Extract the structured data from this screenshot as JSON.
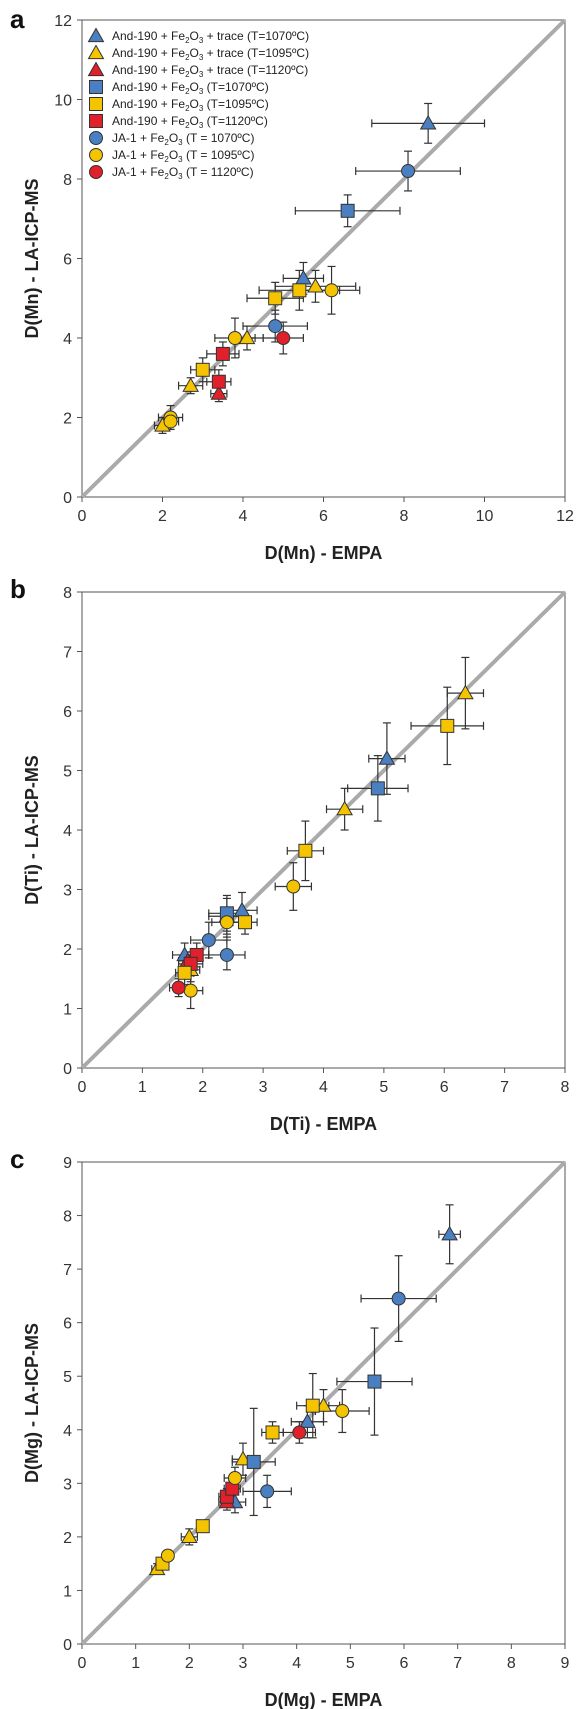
{
  "colors": {
    "blue": "#4a7fc1",
    "yellow": "#f5c400",
    "red": "#e0202a",
    "diagonal": "#aaaaaa",
    "marker_edge": "#333333"
  },
  "chart_data": [
    {
      "type": "scatter",
      "panel_letter": "a",
      "xlabel": "D(Mn) - EMPA",
      "ylabel": "D(Mn) - LA-ICP-MS",
      "xlim": [
        0,
        12
      ],
      "ylim": [
        0,
        12
      ],
      "xticks": [
        "0",
        "2",
        "4",
        "6",
        "8",
        "10",
        "12"
      ],
      "yticks": [
        "0",
        "2",
        "4",
        "6",
        "8",
        "10",
        "12"
      ],
      "reference_line": "1:1",
      "grid": false,
      "legend_position": "top-left",
      "legend": [
        {
          "label_pre": "And-190 + Fe",
          "sub": "2",
          "mid": "O",
          "sub2": "3",
          "label_post": " + trace (T=1070ºC)",
          "marker": "triangle",
          "color": "blue"
        },
        {
          "label_pre": "And-190 + Fe",
          "sub": "2",
          "mid": "O",
          "sub2": "3",
          "label_post": " + trace (T=1095ºC)",
          "marker": "triangle",
          "color": "yellow"
        },
        {
          "label_pre": "And-190 + Fe",
          "sub": "2",
          "mid": "O",
          "sub2": "3",
          "label_post": " + trace (T=1120ºC)",
          "marker": "triangle",
          "color": "red"
        },
        {
          "label_pre": "And-190 + Fe",
          "sub": "2",
          "mid": "O",
          "sub2": "3",
          "label_post": " (T=1070ºC)",
          "marker": "square",
          "color": "blue"
        },
        {
          "label_pre": "And-190 + Fe",
          "sub": "2",
          "mid": "O",
          "sub2": "3",
          "label_post": " (T=1095ºC)",
          "marker": "square",
          "color": "yellow"
        },
        {
          "label_pre": "And-190 + Fe",
          "sub": "2",
          "mid": "O",
          "sub2": "3",
          "label_post": " (T=1120ºC)",
          "marker": "square",
          "color": "red"
        },
        {
          "label_pre": "JA-1 + Fe",
          "sub": "2",
          "mid": "O",
          "sub2": "3",
          "label_post": " (T = 1070ºC)",
          "marker": "circle",
          "color": "blue"
        },
        {
          "label_pre": "JA-1 + Fe",
          "sub": "2",
          "mid": "O",
          "sub2": "3",
          "label_post": " (T = 1095ºC)",
          "marker": "circle",
          "color": "yellow"
        },
        {
          "label_pre": "JA-1 + Fe",
          "sub": "2",
          "mid": "O",
          "sub2": "3",
          "label_post": " (T = 1120ºC)",
          "marker": "circle",
          "color": "red"
        }
      ],
      "points": [
        {
          "m": "triangle",
          "c": "blue",
          "x": 8.6,
          "y": 9.4,
          "xe": 1.4,
          "ye": 0.5
        },
        {
          "m": "triangle",
          "c": "blue",
          "x": 5.5,
          "y": 5.5,
          "xe": 0.5,
          "ye": 0.4
        },
        {
          "m": "triangle",
          "c": "yellow",
          "x": 5.8,
          "y": 5.3,
          "xe": 1.0,
          "ye": 0.4
        },
        {
          "m": "triangle",
          "c": "yellow",
          "x": 4.1,
          "y": 4.0,
          "xe": 0.4,
          "ye": 0.3
        },
        {
          "m": "triangle",
          "c": "yellow",
          "x": 2.7,
          "y": 2.8,
          "xe": 0.3,
          "ye": 0.2
        },
        {
          "m": "triangle",
          "c": "yellow",
          "x": 2.0,
          "y": 1.8,
          "xe": 0.2,
          "ye": 0.2
        },
        {
          "m": "triangle",
          "c": "red",
          "x": 3.4,
          "y": 2.6,
          "xe": 0.2,
          "ye": 0.2
        },
        {
          "m": "square",
          "c": "blue",
          "x": 6.6,
          "y": 7.2,
          "xe": 1.3,
          "ye": 0.4
        },
        {
          "m": "square",
          "c": "yellow",
          "x": 4.8,
          "y": 5.0,
          "xe": 0.7,
          "ye": 0.4
        },
        {
          "m": "square",
          "c": "yellow",
          "x": 5.4,
          "y": 5.2,
          "xe": 1.0,
          "ye": 0.5
        },
        {
          "m": "square",
          "c": "yellow",
          "x": 3.0,
          "y": 3.2,
          "xe": 0.3,
          "ye": 0.3
        },
        {
          "m": "square",
          "c": "red",
          "x": 3.5,
          "y": 3.6,
          "xe": 0.4,
          "ye": 0.3
        },
        {
          "m": "square",
          "c": "red",
          "x": 3.4,
          "y": 2.9,
          "xe": 0.3,
          "ye": 0.3
        },
        {
          "m": "circle",
          "c": "blue",
          "x": 8.1,
          "y": 8.2,
          "xe": 1.3,
          "ye": 0.5
        },
        {
          "m": "circle",
          "c": "blue",
          "x": 4.8,
          "y": 4.3,
          "xe": 0.8,
          "ye": 0.4
        },
        {
          "m": "circle",
          "c": "yellow",
          "x": 6.2,
          "y": 5.2,
          "xe": 0.7,
          "ye": 0.6
        },
        {
          "m": "circle",
          "c": "yellow",
          "x": 3.8,
          "y": 4.0,
          "xe": 0.5,
          "ye": 0.5
        },
        {
          "m": "circle",
          "c": "yellow",
          "x": 2.2,
          "y": 2.0,
          "xe": 0.3,
          "ye": 0.3
        },
        {
          "m": "circle",
          "c": "yellow",
          "x": 2.2,
          "y": 1.9,
          "xe": 0.2,
          "ye": 0.2
        },
        {
          "m": "circle",
          "c": "red",
          "x": 5.0,
          "y": 4.0,
          "xe": 0.5,
          "ye": 0.4
        }
      ]
    },
    {
      "type": "scatter",
      "panel_letter": "b",
      "xlabel": "D(Ti) - EMPA",
      "ylabel": "D(Ti) - LA-ICP-MS",
      "xlim": [
        0,
        8
      ],
      "ylim": [
        0,
        8
      ],
      "xticks": [
        "0",
        "1",
        "2",
        "3",
        "4",
        "5",
        "6",
        "7",
        "8"
      ],
      "yticks": [
        "0",
        "1",
        "2",
        "3",
        "4",
        "5",
        "6",
        "7",
        "8"
      ],
      "reference_line": "1:1",
      "grid": false,
      "points": [
        {
          "m": "triangle",
          "c": "yellow",
          "x": 6.35,
          "y": 6.3,
          "xe": 0.3,
          "ye": 0.6
        },
        {
          "m": "triangle",
          "c": "blue",
          "x": 5.05,
          "y": 5.2,
          "xe": 0.3,
          "ye": 0.6
        },
        {
          "m": "triangle",
          "c": "yellow",
          "x": 4.35,
          "y": 4.35,
          "xe": 0.3,
          "ye": 0.35
        },
        {
          "m": "triangle",
          "c": "blue",
          "x": 2.65,
          "y": 2.65,
          "xe": 0.25,
          "ye": 0.3
        },
        {
          "m": "triangle",
          "c": "yellow",
          "x": 2.4,
          "y": 2.55,
          "xe": 0.3,
          "ye": 0.3
        },
        {
          "m": "triangle",
          "c": "blue",
          "x": 1.7,
          "y": 1.9,
          "xe": 0.2,
          "ye": 0.2
        },
        {
          "m": "triangle",
          "c": "yellow",
          "x": 1.8,
          "y": 1.65,
          "xe": 0.15,
          "ye": 0.2
        },
        {
          "m": "triangle",
          "c": "red",
          "x": 1.75,
          "y": 1.8,
          "xe": 0.15,
          "ye": 0.15
        },
        {
          "m": "square",
          "c": "yellow",
          "x": 6.05,
          "y": 5.75,
          "xe": 0.6,
          "ye": 0.65
        },
        {
          "m": "square",
          "c": "blue",
          "x": 4.9,
          "y": 4.7,
          "xe": 0.5,
          "ye": 0.55
        },
        {
          "m": "square",
          "c": "yellow",
          "x": 3.7,
          "y": 3.65,
          "xe": 0.3,
          "ye": 0.5
        },
        {
          "m": "square",
          "c": "blue",
          "x": 2.4,
          "y": 2.6,
          "xe": 0.3,
          "ye": 0.3
        },
        {
          "m": "square",
          "c": "yellow",
          "x": 2.7,
          "y": 2.45,
          "xe": 0.2,
          "ye": 0.2
        },
        {
          "m": "square",
          "c": "red",
          "x": 1.9,
          "y": 1.9,
          "xe": 0.2,
          "ye": 0.2
        },
        {
          "m": "square",
          "c": "red",
          "x": 1.8,
          "y": 1.75,
          "xe": 0.2,
          "ye": 0.2
        },
        {
          "m": "square",
          "c": "yellow",
          "x": 1.7,
          "y": 1.6,
          "xe": 0.15,
          "ye": 0.2
        },
        {
          "m": "circle",
          "c": "blue",
          "x": 2.1,
          "y": 2.15,
          "xe": 0.3,
          "ye": 0.3
        },
        {
          "m": "circle",
          "c": "blue",
          "x": 2.4,
          "y": 1.9,
          "xe": 0.3,
          "ye": 0.25
        },
        {
          "m": "circle",
          "c": "yellow",
          "x": 3.5,
          "y": 3.05,
          "xe": 0.3,
          "ye": 0.4
        },
        {
          "m": "circle",
          "c": "yellow",
          "x": 2.4,
          "y": 2.45,
          "xe": 0.25,
          "ye": 0.25
        },
        {
          "m": "circle",
          "c": "yellow",
          "x": 1.8,
          "y": 1.3,
          "xe": 0.2,
          "ye": 0.3
        },
        {
          "m": "circle",
          "c": "red",
          "x": 1.6,
          "y": 1.35,
          "xe": 0.15,
          "ye": 0.15
        }
      ]
    },
    {
      "type": "scatter",
      "panel_letter": "c",
      "xlabel": "D(Mg) - EMPA",
      "ylabel": "D(Mg) - LA-ICP-MS",
      "xlim": [
        0,
        9
      ],
      "ylim": [
        0,
        9
      ],
      "xticks": [
        "0",
        "1",
        "2",
        "3",
        "4",
        "5",
        "6",
        "7",
        "8",
        "9"
      ],
      "yticks": [
        "0",
        "1",
        "2",
        "3",
        "4",
        "5",
        "6",
        "7",
        "8",
        "9"
      ],
      "reference_line": "1:1",
      "grid": false,
      "points": [
        {
          "m": "triangle",
          "c": "blue",
          "x": 6.85,
          "y": 7.65,
          "xe": 0.2,
          "ye": 0.55
        },
        {
          "m": "triangle",
          "c": "yellow",
          "x": 4.5,
          "y": 4.45,
          "xe": 0.3,
          "ye": 0.3
        },
        {
          "m": "triangle",
          "c": "blue",
          "x": 4.2,
          "y": 4.15,
          "xe": 0.3,
          "ye": 0.3
        },
        {
          "m": "triangle",
          "c": "yellow",
          "x": 3.0,
          "y": 3.45,
          "xe": 0.2,
          "ye": 0.3
        },
        {
          "m": "triangle",
          "c": "blue",
          "x": 2.85,
          "y": 2.65,
          "xe": 0.2,
          "ye": 0.2
        },
        {
          "m": "triangle",
          "c": "yellow",
          "x": 2.0,
          "y": 2.0,
          "xe": 0.15,
          "ye": 0.15
        },
        {
          "m": "triangle",
          "c": "yellow",
          "x": 1.4,
          "y": 1.4,
          "xe": 0.1,
          "ye": 0.1
        },
        {
          "m": "triangle",
          "c": "red",
          "x": 2.7,
          "y": 2.65,
          "xe": 0.15,
          "ye": 0.15
        },
        {
          "m": "square",
          "c": "blue",
          "x": 5.45,
          "y": 4.9,
          "xe": 0.7,
          "ye": 1.0
        },
        {
          "m": "square",
          "c": "yellow",
          "x": 4.3,
          "y": 4.45,
          "xe": 0.3,
          "ye": 0.6
        },
        {
          "m": "square",
          "c": "yellow",
          "x": 3.55,
          "y": 3.95,
          "xe": 0.2,
          "ye": 0.2
        },
        {
          "m": "square",
          "c": "blue",
          "x": 3.2,
          "y": 3.4,
          "xe": 0.4,
          "ye": 1.0
        },
        {
          "m": "square",
          "c": "yellow",
          "x": 2.25,
          "y": 2.2,
          "xe": 0.1,
          "ye": 0.1
        },
        {
          "m": "square",
          "c": "yellow",
          "x": 1.5,
          "y": 1.5,
          "xe": 0.1,
          "ye": 0.1
        },
        {
          "m": "square",
          "c": "red",
          "x": 2.7,
          "y": 2.75,
          "xe": 0.15,
          "ye": 0.15
        },
        {
          "m": "square",
          "c": "red",
          "x": 2.8,
          "y": 2.9,
          "xe": 0.15,
          "ye": 0.15
        },
        {
          "m": "circle",
          "c": "blue",
          "x": 5.9,
          "y": 6.45,
          "xe": 0.7,
          "ye": 0.8
        },
        {
          "m": "circle",
          "c": "blue",
          "x": 3.45,
          "y": 2.85,
          "xe": 0.45,
          "ye": 0.3
        },
        {
          "m": "circle",
          "c": "yellow",
          "x": 4.85,
          "y": 4.35,
          "xe": 0.5,
          "ye": 0.4
        },
        {
          "m": "circle",
          "c": "yellow",
          "x": 2.85,
          "y": 3.1,
          "xe": 0.2,
          "ye": 0.2
        },
        {
          "m": "circle",
          "c": "yellow",
          "x": 1.6,
          "y": 1.65,
          "xe": 0.1,
          "ye": 0.1
        },
        {
          "m": "circle",
          "c": "red",
          "x": 4.05,
          "y": 3.95,
          "xe": 0.3,
          "ye": 0.2
        }
      ]
    }
  ]
}
